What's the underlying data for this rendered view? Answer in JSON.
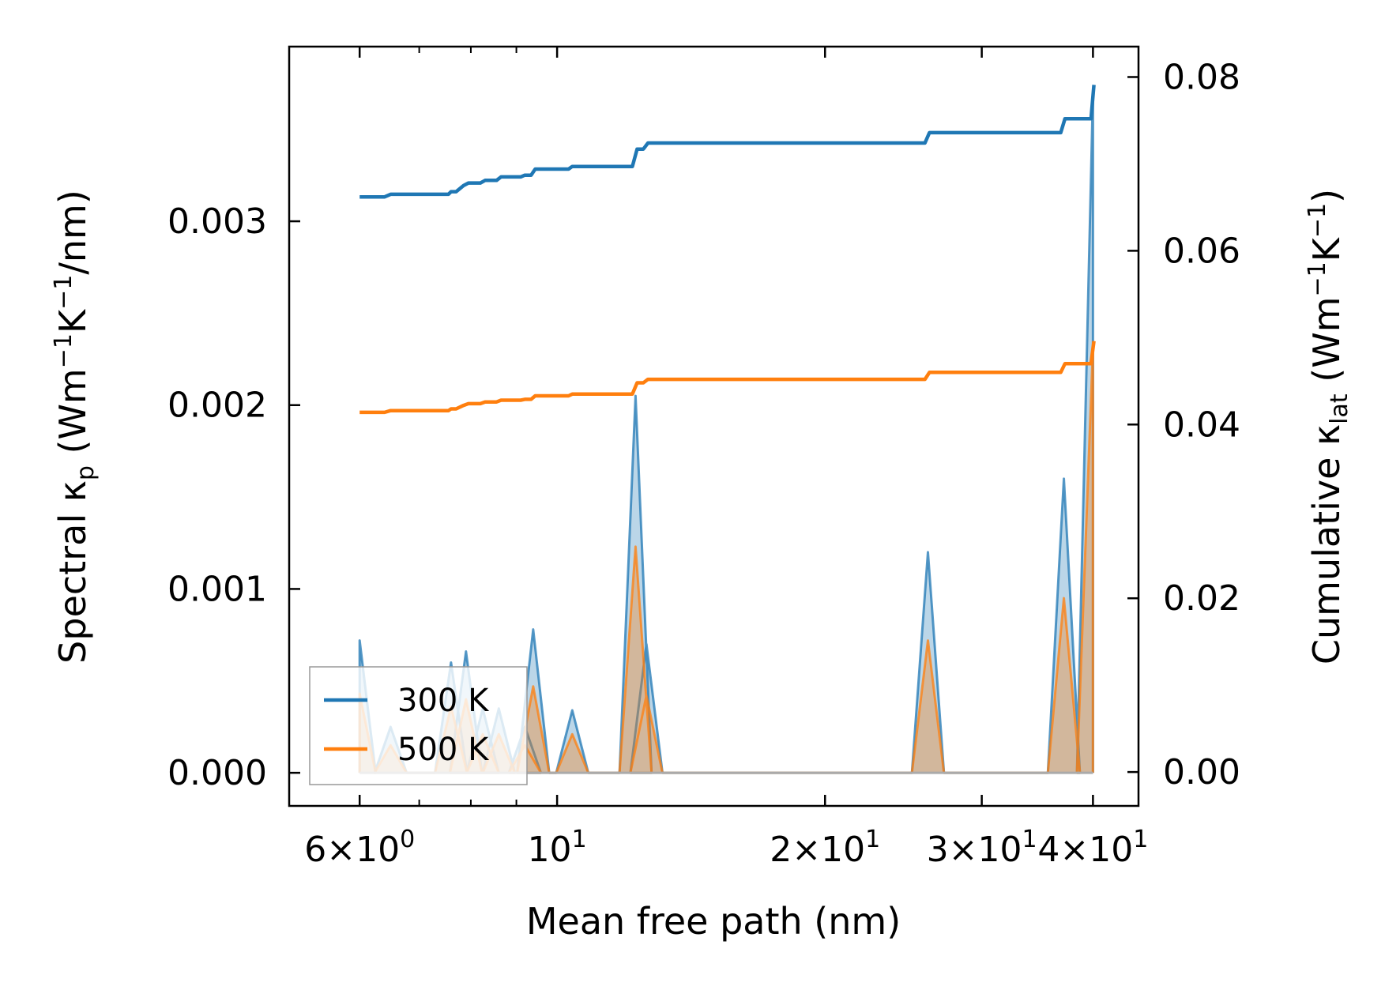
{
  "chart_data": {
    "type": "line",
    "title": "",
    "xscale": "log",
    "xlabel": "Mean free path (nm)",
    "xlim": [
      5.0,
      45.0
    ],
    "xticks": [
      {
        "value": 6,
        "base": "6",
        "sup": "0"
      },
      {
        "value": 10,
        "base": "10",
        "sup": "1"
      },
      {
        "value": 20,
        "base": "2",
        "sup": "1"
      },
      {
        "value": 30,
        "base": "3",
        "sup": "1"
      },
      {
        "value": 40,
        "base": "4",
        "sup": "1"
      }
    ],
    "ylabel_left": {
      "pre": "Spectral κ",
      "sub": "p",
      "mid1": " (Wm",
      "sup1": "−1",
      "mid2": "K",
      "sup2": "−1",
      "post": "/nm)"
    },
    "ylim_left": [
      -0.00018,
      0.00395
    ],
    "yticks_left": [
      "0.000",
      "0.001",
      "0.002",
      "0.003"
    ],
    "ylabel_right": {
      "pre": "Cumulative κ",
      "sub": "lat",
      "mid1": " (Wm",
      "sup1": "−1",
      "mid2": "K",
      "sup2": "−1",
      "post": ")"
    },
    "ylim_right": [
      -0.0039,
      0.0835
    ],
    "yticks_right": [
      "0.00",
      "0.02",
      "0.04",
      "0.06",
      "0.08"
    ],
    "legend": {
      "position": "lower-left"
    },
    "series": [
      {
        "name": "300 K",
        "color": "#1f77b4",
        "spectral_axis": "left",
        "spectral_peaks": [
          [
            6.0,
            0.00072
          ],
          [
            6.5,
            0.00025
          ],
          [
            7.6,
            0.0006
          ],
          [
            7.9,
            0.00066
          ],
          [
            8.25,
            0.00035
          ],
          [
            8.6,
            0.00035
          ],
          [
            9.2,
            0.00025
          ],
          [
            9.4,
            0.00078
          ],
          [
            10.4,
            0.00034
          ],
          [
            12.25,
            0.00205
          ],
          [
            12.6,
            0.0007
          ],
          [
            26.1,
            0.0012
          ],
          [
            37.1,
            0.0016
          ],
          [
            40.0,
            0.0037
          ]
        ],
        "cumulative": [
          [
            6.0,
            0.0662
          ],
          [
            6.4,
            0.0662
          ],
          [
            6.5,
            0.0665
          ],
          [
            7.55,
            0.0665
          ],
          [
            7.6,
            0.0668
          ],
          [
            7.7,
            0.0668
          ],
          [
            7.85,
            0.0675
          ],
          [
            7.95,
            0.0678
          ],
          [
            8.2,
            0.0678
          ],
          [
            8.3,
            0.0681
          ],
          [
            8.55,
            0.0681
          ],
          [
            8.65,
            0.0685
          ],
          [
            9.1,
            0.0685
          ],
          [
            9.2,
            0.0687
          ],
          [
            9.35,
            0.0687
          ],
          [
            9.45,
            0.0694
          ],
          [
            10.3,
            0.0694
          ],
          [
            10.4,
            0.0697
          ],
          [
            12.15,
            0.0697
          ],
          [
            12.3,
            0.0717
          ],
          [
            12.5,
            0.0717
          ],
          [
            12.65,
            0.0724
          ],
          [
            25.9,
            0.0724
          ],
          [
            26.2,
            0.0736
          ],
          [
            36.8,
            0.0736
          ],
          [
            37.2,
            0.0752
          ],
          [
            39.8,
            0.0752
          ],
          [
            40.1,
            0.0791
          ]
        ]
      },
      {
        "name": "500 K",
        "color": "#ff7f0e",
        "spectral_axis": "left",
        "spectral_peaks": [
          [
            6.0,
            0.00043
          ],
          [
            6.5,
            0.00015
          ],
          [
            7.6,
            0.00036
          ],
          [
            7.9,
            0.0004
          ],
          [
            8.25,
            0.00021
          ],
          [
            8.6,
            0.00021
          ],
          [
            9.2,
            0.00015
          ],
          [
            9.4,
            0.00047
          ],
          [
            10.4,
            0.00021
          ],
          [
            12.25,
            0.00123
          ],
          [
            12.6,
            0.00042
          ],
          [
            26.1,
            0.00072
          ],
          [
            37.1,
            0.00095
          ],
          [
            40.0,
            0.00232
          ]
        ],
        "cumulative": [
          [
            6.0,
            0.0414
          ],
          [
            6.4,
            0.0414
          ],
          [
            6.5,
            0.0416
          ],
          [
            7.55,
            0.0416
          ],
          [
            7.6,
            0.0418
          ],
          [
            7.7,
            0.0418
          ],
          [
            7.85,
            0.0422
          ],
          [
            7.95,
            0.0424
          ],
          [
            8.2,
            0.0424
          ],
          [
            8.3,
            0.0426
          ],
          [
            8.55,
            0.0426
          ],
          [
            8.65,
            0.0428
          ],
          [
            9.1,
            0.0428
          ],
          [
            9.2,
            0.0429
          ],
          [
            9.35,
            0.0429
          ],
          [
            9.45,
            0.0433
          ],
          [
            10.3,
            0.0433
          ],
          [
            10.4,
            0.0435
          ],
          [
            12.15,
            0.0435
          ],
          [
            12.3,
            0.0448
          ],
          [
            12.5,
            0.0448
          ],
          [
            12.65,
            0.0452
          ],
          [
            25.9,
            0.0452
          ],
          [
            26.2,
            0.046
          ],
          [
            36.8,
            0.046
          ],
          [
            37.2,
            0.047
          ],
          [
            39.8,
            0.047
          ],
          [
            40.1,
            0.0496
          ]
        ]
      }
    ]
  }
}
